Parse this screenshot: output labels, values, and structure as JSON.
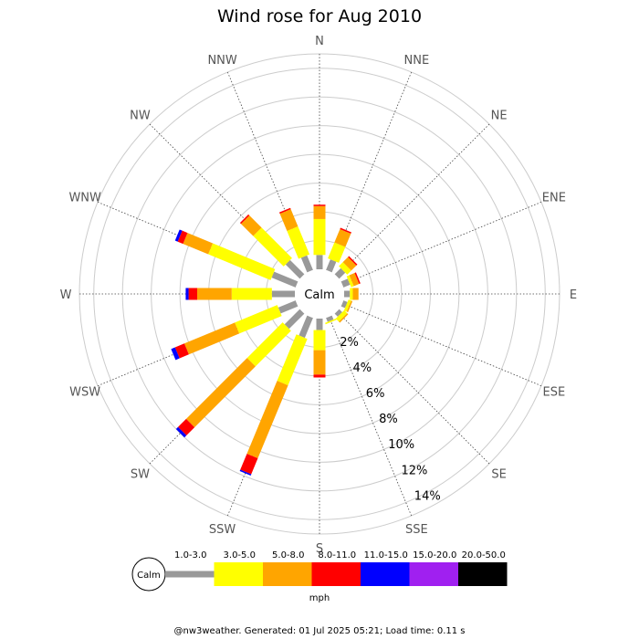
{
  "chart_data": {
    "type": "wind-rose",
    "title": "Wind rose for Aug 2010",
    "directions": [
      "N",
      "NNE",
      "NE",
      "ENE",
      "E",
      "ESE",
      "SE",
      "SSE",
      "S",
      "SSW",
      "SW",
      "WSW",
      "W",
      "WNW",
      "NW",
      "NNW"
    ],
    "rings": [
      "2%",
      "4%",
      "6%",
      "8%",
      "10%",
      "12%",
      "14%"
    ],
    "ring_max_percent": 15,
    "calm_label": "Calm",
    "speed_unit": "mph",
    "speed_bins": [
      "1.0-3.0",
      "3.0-5.0",
      "5.0-8.0",
      "8.0-11.0",
      "11.0-15.0",
      "15.0-20.0",
      "20.0-50.0"
    ],
    "bin_colors": [
      "#999999",
      "#ffff00",
      "#ffa500",
      "#ff0000",
      "#0000ff",
      "#a020f0",
      "#000000"
    ],
    "grid": true,
    "cumulative_percent_by_direction": {
      "N": [
        1.0,
        3.5,
        4.4,
        4.5,
        4.5,
        4.5,
        4.5
      ],
      "NNE": [
        0.8,
        2.0,
        3.0,
        3.1,
        3.1,
        3.1,
        3.1
      ],
      "NE": [
        0.6,
        1.0,
        1.5,
        1.6,
        1.6,
        1.6,
        1.6
      ],
      "ENE": [
        0.5,
        0.7,
        1.1,
        1.2,
        1.2,
        1.2,
        1.2
      ],
      "E": [
        0.4,
        0.6,
        1.0,
        1.0,
        1.0,
        1.0,
        1.0
      ],
      "ESE": [
        0.3,
        0.5,
        0.6,
        0.6,
        0.6,
        0.6,
        0.6
      ],
      "SE": [
        0.3,
        0.6,
        0.7,
        0.7,
        0.7,
        0.7,
        0.7
      ],
      "SSE": [
        0.3,
        0.4,
        0.4,
        0.4,
        0.4,
        0.4,
        0.4
      ],
      "S": [
        0.8,
        2.2,
        3.9,
        4.1,
        4.1,
        4.1,
        4.1
      ],
      "SSW": [
        1.5,
        5.0,
        10.5,
        11.7,
        11.8,
        11.8,
        11.8
      ],
      "SW": [
        1.5,
        5.0,
        11.0,
        11.8,
        12.0,
        12.0,
        12.0
      ],
      "WSW": [
        1.3,
        4.5,
        8.3,
        9.0,
        9.3,
        9.3,
        9.3
      ],
      "W": [
        1.6,
        4.4,
        6.8,
        7.4,
        7.6,
        7.6,
        7.6
      ],
      "WNW": [
        1.8,
        6.5,
        8.4,
        8.8,
        9.0,
        9.0,
        9.0
      ],
      "NW": [
        1.4,
        4.4,
        5.6,
        5.7,
        5.7,
        5.7,
        5.7
      ],
      "NNW": [
        1.1,
        3.2,
        4.5,
        4.6,
        4.6,
        4.6,
        4.6
      ]
    }
  },
  "footer_text": "@nw3weather. Generated: 01 Jul 2025 05:21; Load time: 0.11 s"
}
